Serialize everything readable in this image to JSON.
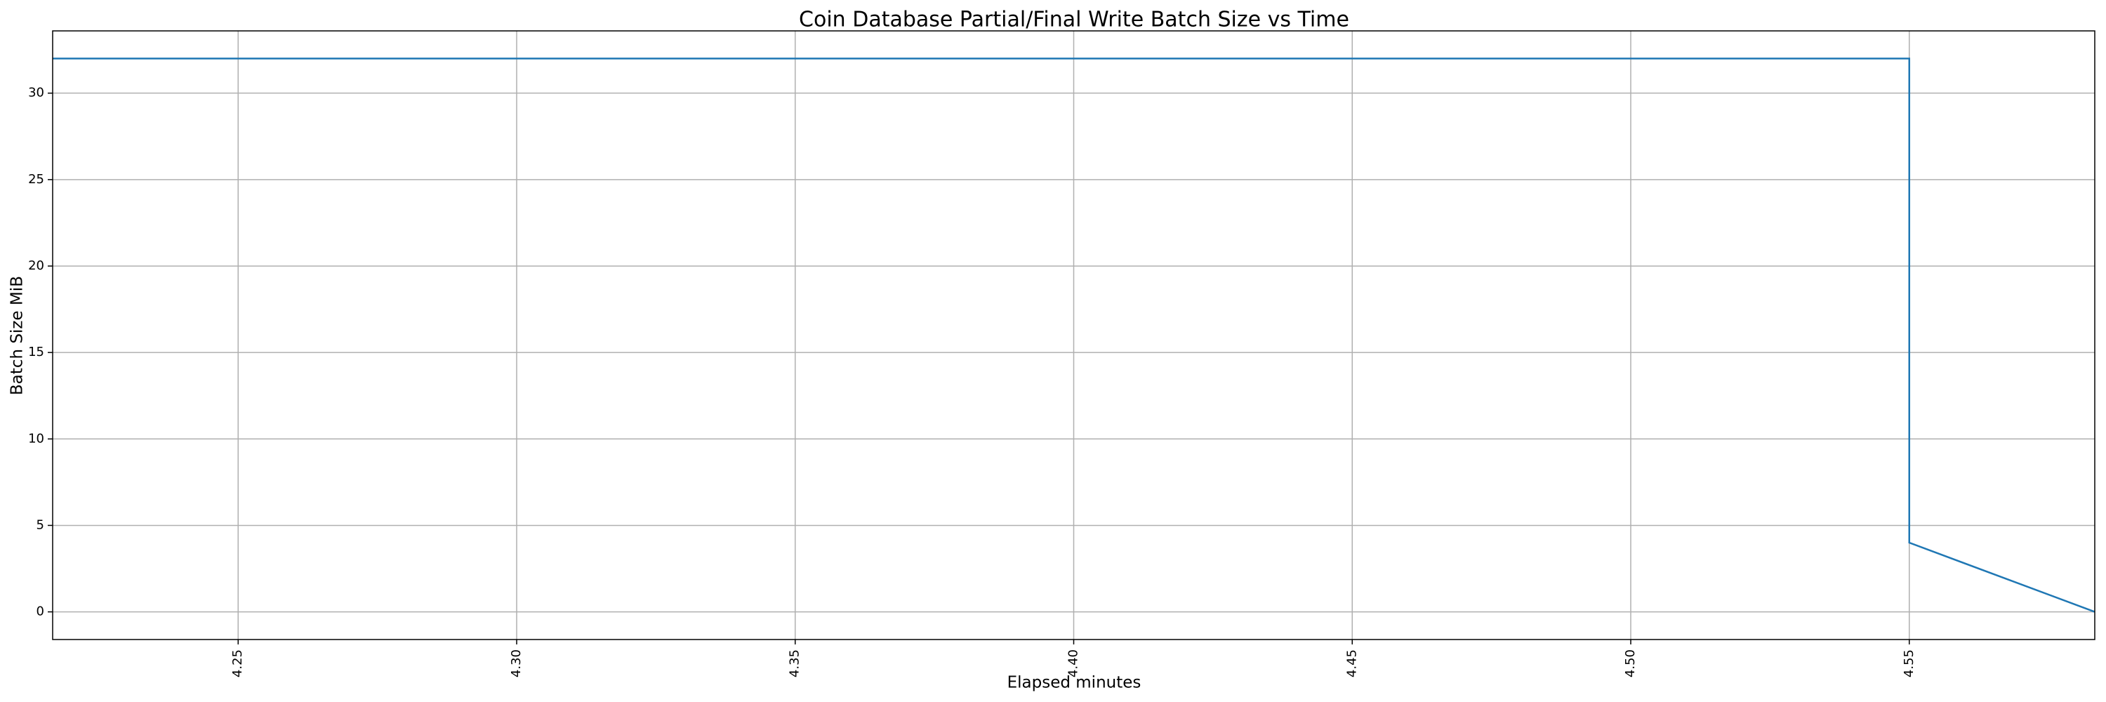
{
  "chart_data": {
    "type": "line",
    "title": "Coin Database Partial/Final Write Batch Size vs Time",
    "xlabel": "Elapsed minutes",
    "ylabel": "Batch Size MiB",
    "x": [
      4.2167,
      4.55,
      4.55,
      4.5833
    ],
    "series": [
      {
        "name": "Batch Size MiB",
        "color": "#1f77b4",
        "values": [
          32,
          32,
          4,
          0
        ]
      }
    ],
    "xlim": [
      4.2167,
      4.5833
    ],
    "xticks": [
      4.25,
      {
        "value": 4.3,
        "label": "4.30"
      },
      4.35,
      {
        "value": 4.4,
        "label": "4.40"
      },
      4.45,
      {
        "value": 4.5,
        "label": "4.50"
      },
      4.55
    ],
    "ylim": [
      -1.6,
      33.6
    ],
    "yticks": [
      0,
      5,
      10,
      15,
      20,
      25,
      30
    ],
    "grid": true
  }
}
